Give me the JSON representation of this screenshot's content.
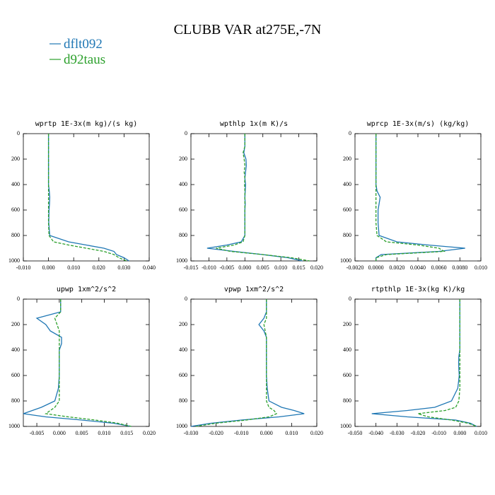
{
  "title": "CLUBB VAR at275E,-7N",
  "legend": [
    {
      "name": "dflt092",
      "color": "#1f77b4"
    },
    {
      "name": "d92taus",
      "color": "#2ca02c"
    }
  ],
  "chart_data": [
    {
      "type": "profile",
      "title": "wprtp  1E-3x(m kg)/(s kg)",
      "y": [
        0,
        100,
        150,
        200,
        250,
        300,
        350,
        400,
        450,
        500,
        550,
        600,
        700,
        800,
        850,
        875,
        900,
        925,
        950,
        975,
        1000
      ],
      "ylim": [
        1000,
        0
      ],
      "yticks": [
        0,
        200,
        400,
        600,
        800,
        1000
      ],
      "xlim": [
        -0.01,
        0.04
      ],
      "xticks": [
        {
          "value": -0.01,
          "label": "-0.010"
        },
        {
          "value": 0,
          "label": "0.000"
        },
        {
          "value": 0.01,
          "label": "0.010"
        },
        {
          "value": 0.02,
          "label": "0.020"
        },
        {
          "value": 0.03,
          "label": "0.030"
        },
        {
          "value": 0.04,
          "label": "0.040"
        }
      ],
      "series": [
        {
          "color": "#1f77b4",
          "dashed": false,
          "values": [
            0,
            0,
            0,
            0,
            0,
            0,
            0,
            0,
            0.0003,
            0.0005,
            0.0004,
            0.0002,
            0.0001,
            0.0005,
            0.008,
            0.015,
            0.022,
            0.026,
            0.027,
            0.03,
            0.032
          ]
        },
        {
          "color": "#2ca02c",
          "dashed": true,
          "values": [
            0,
            0,
            0,
            0,
            0,
            0,
            0,
            0,
            0,
            0,
            0,
            0,
            0,
            0.0002,
            0.002,
            0.008,
            0.015,
            0.022,
            0.026,
            0.028,
            0.031
          ]
        }
      ]
    },
    {
      "type": "profile",
      "title": "wpthlp  1x(m K)/s",
      "y": [
        0,
        100,
        150,
        200,
        250,
        300,
        350,
        400,
        450,
        500,
        550,
        600,
        700,
        800,
        850,
        875,
        900,
        925,
        950,
        975,
        1000
      ],
      "ylim": [
        1000,
        0
      ],
      "yticks": [
        0,
        200,
        400,
        600,
        800,
        1000
      ],
      "xlim": [
        -0.015,
        0.02
      ],
      "xticks": [
        {
          "value": -0.015,
          "label": "-0.015"
        },
        {
          "value": -0.01,
          "label": "-0.010"
        },
        {
          "value": -0.005,
          "label": "-0.005"
        },
        {
          "value": 0,
          "label": "0.000"
        },
        {
          "value": 0.005,
          "label": "0.005"
        },
        {
          "value": 0.01,
          "label": "0.010"
        },
        {
          "value": 0.015,
          "label": "0.015"
        },
        {
          "value": 0.02,
          "label": "0.020"
        }
      ],
      "series": [
        {
          "color": "#1f77b4",
          "dashed": false,
          "values": [
            0,
            0,
            -0.0003,
            0.0003,
            0.0004,
            0.0002,
            0,
            0.0002,
            0.0001,
            0,
            0.0001,
            0,
            0,
            0,
            -0.001,
            -0.005,
            -0.0105,
            -0.003,
            0.005,
            0.012,
            0.016
          ]
        },
        {
          "color": "#2ca02c",
          "dashed": true,
          "values": [
            0,
            0,
            -0.0005,
            -0.0002,
            0,
            -0.0002,
            0,
            -0.0001,
            0,
            0,
            0,
            0,
            0,
            0,
            -0.0005,
            -0.003,
            -0.008,
            -0.004,
            0.005,
            0.013,
            0.018
          ]
        }
      ]
    },
    {
      "type": "profile",
      "title": "wprcp  1E-3x(m/s) (kg/kg)",
      "y": [
        0,
        100,
        150,
        200,
        250,
        300,
        350,
        400,
        450,
        500,
        550,
        600,
        700,
        800,
        850,
        875,
        900,
        925,
        950,
        975,
        1000
      ],
      "ylim": [
        1000,
        0
      ],
      "yticks": [
        0,
        200,
        400,
        600,
        800,
        1000
      ],
      "xlim": [
        -0.002,
        0.01
      ],
      "xticks": [
        {
          "value": -0.002,
          "label": "-0.0020"
        },
        {
          "value": 0,
          "label": "0.0000"
        },
        {
          "value": 0.002,
          "label": "0.0020"
        },
        {
          "value": 0.004,
          "label": "0.0040"
        },
        {
          "value": 0.006,
          "label": "0.0060"
        },
        {
          "value": 0.008,
          "label": "0.0080"
        },
        {
          "value": 0.01,
          "label": "0.010"
        }
      ],
      "series": [
        {
          "color": "#1f77b4",
          "dashed": false,
          "values": [
            0,
            0,
            0,
            0,
            0,
            0,
            0,
            0,
            0.0001,
            0.0004,
            0.0003,
            0.0002,
            0.0002,
            0.0003,
            0.002,
            0.005,
            0.0085,
            0.006,
            0.0005,
            0,
            0
          ]
        },
        {
          "color": "#2ca02c",
          "dashed": true,
          "values": [
            0,
            0,
            0,
            0,
            0,
            0,
            0,
            0,
            0,
            0,
            0,
            0,
            0,
            0.0001,
            0.001,
            0.004,
            0.006,
            0.0065,
            0.001,
            0,
            0
          ]
        }
      ]
    },
    {
      "type": "profile",
      "title": "upwp  1xm^2/s^2",
      "y": [
        0,
        100,
        150,
        200,
        250,
        300,
        350,
        400,
        450,
        500,
        550,
        600,
        700,
        800,
        850,
        875,
        900,
        925,
        950,
        975,
        1000
      ],
      "ylim": [
        1000,
        0
      ],
      "yticks": [
        0,
        200,
        400,
        600,
        800,
        1000
      ],
      "xlim": [
        -0.008,
        0.02
      ],
      "xticks": [
        {
          "value": -0.005,
          "label": "-0.005"
        },
        {
          "value": 0,
          "label": "0.000"
        },
        {
          "value": 0.005,
          "label": "0.005"
        },
        {
          "value": 0.01,
          "label": "0.010"
        },
        {
          "value": 0.015,
          "label": "0.015"
        },
        {
          "value": 0.02,
          "label": "0.020"
        }
      ],
      "series": [
        {
          "color": "#1f77b4",
          "dashed": false,
          "values": [
            0.0003,
            0.0003,
            -0.005,
            -0.003,
            -0.002,
            0.0005,
            0.0005,
            0,
            0,
            0,
            0,
            0,
            -0.0002,
            -0.001,
            -0.004,
            -0.006,
            -0.008,
            -0.003,
            0.005,
            0.012,
            0.016
          ]
        },
        {
          "color": "#2ca02c",
          "dashed": true,
          "values": [
            0.0003,
            0.0003,
            -0.001,
            -0.0005,
            0,
            0,
            0,
            0,
            0,
            0,
            0,
            0,
            0,
            0,
            -0.001,
            -0.002,
            -0.003,
            0.002,
            0.008,
            0.013,
            0.016
          ]
        }
      ]
    },
    {
      "type": "profile",
      "title": "vpwp  1xm^2/s^2",
      "y": [
        0,
        100,
        150,
        200,
        250,
        300,
        350,
        400,
        450,
        500,
        550,
        600,
        700,
        800,
        850,
        875,
        900,
        925,
        950,
        975,
        1000
      ],
      "ylim": [
        1000,
        0
      ],
      "yticks": [
        0,
        200,
        400,
        600,
        800,
        1000
      ],
      "xlim": [
        -0.03,
        0.02
      ],
      "xticks": [
        {
          "value": -0.03,
          "label": "-0.030"
        },
        {
          "value": -0.02,
          "label": "-0.020"
        },
        {
          "value": -0.01,
          "label": "-0.010"
        },
        {
          "value": 0,
          "label": "0.000"
        },
        {
          "value": 0.01,
          "label": "0.010"
        },
        {
          "value": 0.02,
          "label": "0.020"
        }
      ],
      "series": [
        {
          "color": "#1f77b4",
          "dashed": false,
          "values": [
            0,
            0,
            -0.001,
            -0.003,
            -0.001,
            0,
            0,
            0,
            0,
            0,
            0,
            0,
            0.0003,
            0.001,
            0.006,
            0.011,
            0.015,
            0.005,
            -0.01,
            -0.022,
            -0.03
          ]
        },
        {
          "color": "#2ca02c",
          "dashed": true,
          "values": [
            0,
            0,
            0,
            -0.001,
            -0.0005,
            0,
            0,
            0,
            0,
            0,
            0,
            0,
            0,
            0,
            0.001,
            0.003,
            0.004,
            0.001,
            -0.008,
            -0.02,
            -0.028
          ]
        }
      ]
    },
    {
      "type": "profile",
      "title": "rtpthlp  1E-3x(kg K)/kg",
      "y": [
        0,
        100,
        150,
        200,
        250,
        300,
        350,
        400,
        450,
        500,
        550,
        600,
        700,
        800,
        850,
        875,
        900,
        925,
        950,
        975,
        1000
      ],
      "ylim": [
        1000,
        0
      ],
      "yticks": [
        0,
        200,
        400,
        600,
        800,
        1000
      ],
      "xlim": [
        -0.05,
        0.01
      ],
      "xticks": [
        {
          "value": -0.05,
          "label": "-0.050"
        },
        {
          "value": -0.04,
          "label": "-0.040"
        },
        {
          "value": -0.03,
          "label": "-0.030"
        },
        {
          "value": -0.02,
          "label": "-0.020"
        },
        {
          "value": -0.01,
          "label": "-0.010"
        },
        {
          "value": 0,
          "label": "0.000"
        },
        {
          "value": 0.01,
          "label": "0.010"
        }
      ],
      "series": [
        {
          "color": "#1f77b4",
          "dashed": false,
          "values": [
            0,
            0,
            0,
            0,
            0,
            0,
            0,
            0,
            -0.0005,
            -0.0006,
            -0.0005,
            -0.0003,
            -0.001,
            -0.004,
            -0.012,
            -0.025,
            -0.042,
            -0.025,
            -0.002,
            0.005,
            0.008
          ]
        },
        {
          "color": "#2ca02c",
          "dashed": true,
          "values": [
            0,
            0,
            0,
            0,
            0,
            0,
            0,
            0,
            0,
            0,
            0,
            0,
            0,
            -0.0005,
            -0.002,
            -0.007,
            -0.02,
            -0.015,
            -0.004,
            0.004,
            0.008
          ]
        }
      ]
    }
  ]
}
